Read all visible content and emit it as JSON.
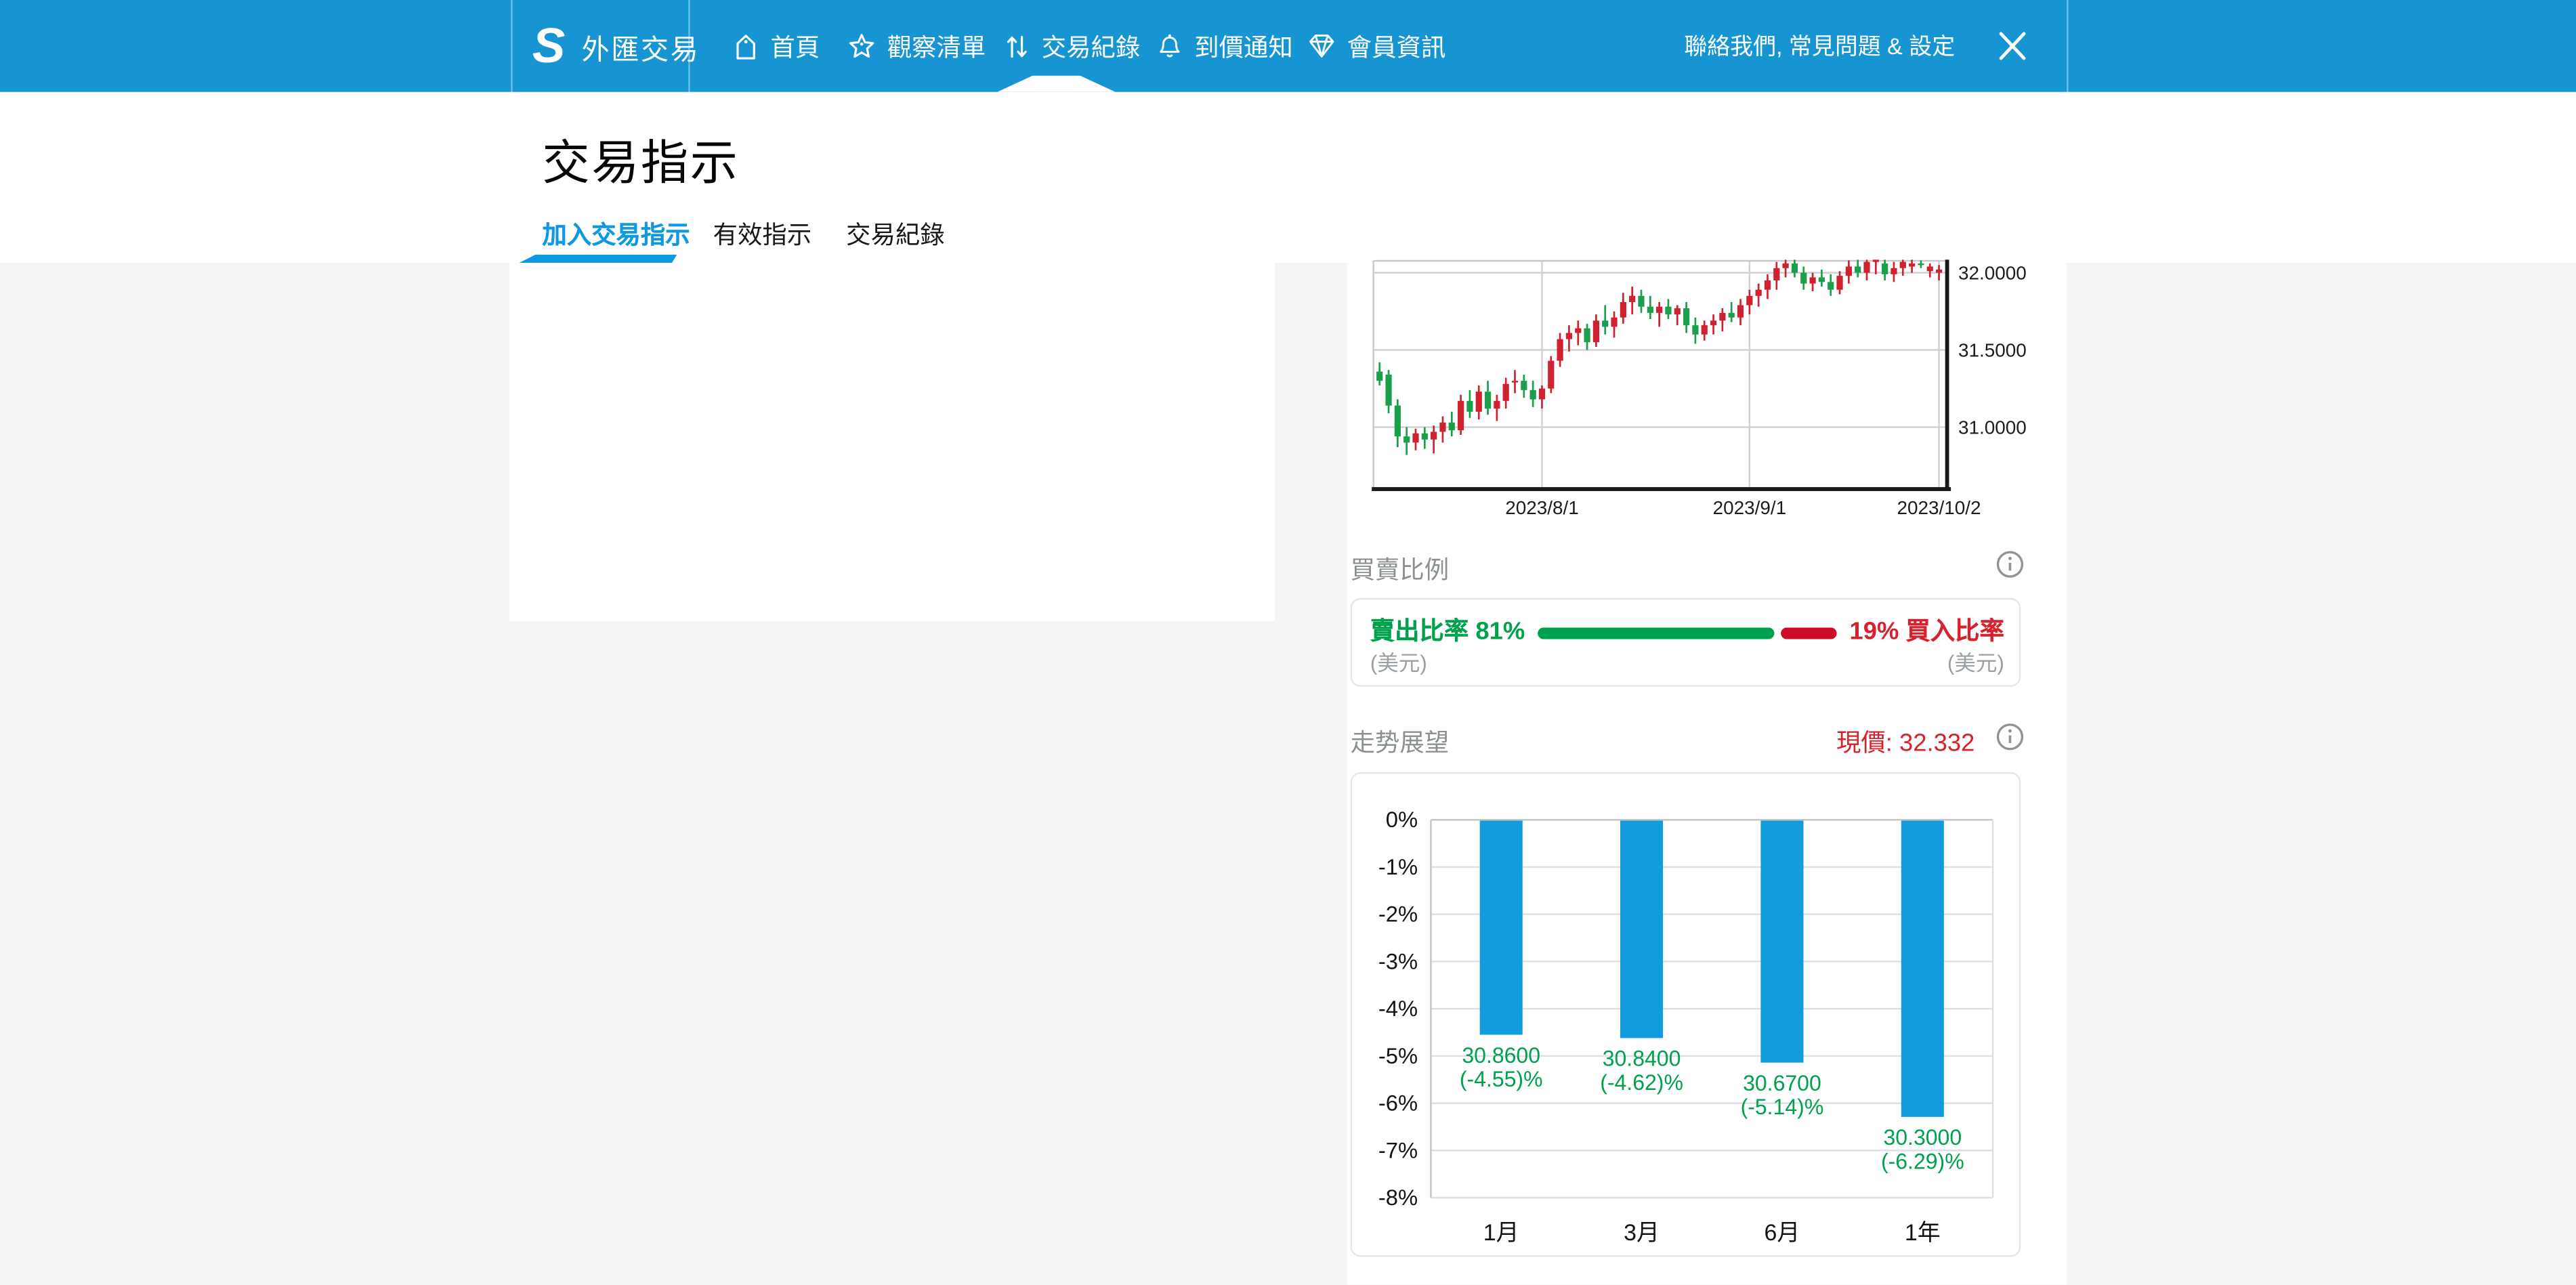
{
  "header": {
    "brand": "外匯交易",
    "nav": [
      {
        "id": "home",
        "label": "首頁",
        "icon": "home-tag-icon"
      },
      {
        "id": "watchlist",
        "label": "觀察清單",
        "icon": "star-icon"
      },
      {
        "id": "trades",
        "label": "交易紀錄",
        "icon": "up-down-arrows-icon",
        "active": true
      },
      {
        "id": "alerts",
        "label": "到價通知",
        "icon": "bell-icon"
      },
      {
        "id": "member",
        "label": "會員資訊",
        "icon": "gem-icon"
      }
    ],
    "right_text": "聯絡我們, 常見問題 & 設定",
    "close_icon": "close-icon",
    "colors": {
      "bar": "#1795d3"
    }
  },
  "page": {
    "title": "交易指示",
    "tabs": [
      {
        "label": "加入交易指示",
        "active": true
      },
      {
        "label": "有效指示",
        "active": false
      },
      {
        "label": "交易紀錄",
        "active": false
      }
    ],
    "accent_color": "#0d98e2"
  },
  "ratio_section": {
    "title": "買賣比例",
    "sell_label": "賣出比率 81%",
    "sell_currency": "(美元)",
    "buy_label": "19% 買入比率",
    "buy_currency": "(美元)",
    "sell_pct": 81,
    "buy_pct": 19,
    "sell_color": "#00a14d",
    "buy_color": "#ce0a29"
  },
  "outlook_section": {
    "title": "走势展望",
    "price_label": "現價: 32.332",
    "current_price": 32.332
  },
  "chart_data": [
    {
      "type": "candlestick",
      "pair": "USD/TWD",
      "up_color": "#cf2130",
      "down_color": "#1aa04b",
      "y_axis_side": "right",
      "yticks": [
        {
          "label": "32.0000",
          "value": 32.0
        },
        {
          "label": "31.5000",
          "value": 31.5
        },
        {
          "label": "31.0000",
          "value": 31.0
        }
      ],
      "xticks": [
        {
          "label": "2023/8/1",
          "index": 18
        },
        {
          "label": "2023/9/1",
          "index": 41
        },
        {
          "label": "2023/10/2",
          "index": 62
        }
      ],
      "visible_value_top": 32.085,
      "visible_value_bottom": 30.61,
      "candles": [
        [
          "7/6",
          31.36,
          31.42,
          31.27,
          31.3
        ],
        [
          "7/7",
          31.34,
          31.37,
          31.09,
          31.14
        ],
        [
          "7/10",
          31.14,
          31.18,
          30.87,
          30.94
        ],
        [
          "7/11",
          30.94,
          31.0,
          30.82,
          30.9
        ],
        [
          "7/12",
          30.9,
          30.99,
          30.85,
          30.96
        ],
        [
          "7/13",
          30.96,
          31.0,
          30.86,
          30.92
        ],
        [
          "7/14",
          30.92,
          31.01,
          30.83,
          30.97
        ],
        [
          "7/17",
          30.97,
          31.07,
          30.9,
          31.03
        ],
        [
          "7/18",
          31.03,
          31.1,
          30.94,
          30.98
        ],
        [
          "7/19",
          30.98,
          31.21,
          30.95,
          31.17
        ],
        [
          "7/20",
          31.17,
          31.24,
          31.06,
          31.1
        ],
        [
          "7/21",
          31.1,
          31.27,
          31.05,
          31.23
        ],
        [
          "7/24",
          31.23,
          31.3,
          31.08,
          31.12
        ],
        [
          "7/25",
          31.12,
          31.21,
          31.04,
          31.17
        ],
        [
          "7/26",
          31.17,
          31.32,
          31.12,
          31.28
        ],
        [
          "7/27",
          31.3,
          31.37,
          31.22,
          31.3
        ],
        [
          "7/28",
          31.3,
          31.34,
          31.19,
          31.24
        ],
        [
          "7/31",
          31.24,
          31.3,
          31.13,
          31.18
        ],
        [
          "8/1",
          31.18,
          31.27,
          31.12,
          31.25
        ],
        [
          "8/2",
          31.25,
          31.46,
          31.22,
          31.43
        ],
        [
          "8/3",
          31.43,
          31.61,
          31.39,
          31.57
        ],
        [
          "8/4",
          31.57,
          31.66,
          31.49,
          31.61
        ],
        [
          "8/7",
          31.61,
          31.69,
          31.53,
          31.64
        ],
        [
          "8/8",
          31.64,
          31.67,
          31.5,
          31.55
        ],
        [
          "8/9",
          31.55,
          31.73,
          31.52,
          31.69
        ],
        [
          "8/10",
          31.69,
          31.79,
          31.6,
          31.65
        ],
        [
          "8/11",
          31.65,
          31.75,
          31.58,
          31.71
        ],
        [
          "8/14",
          31.71,
          31.87,
          31.67,
          31.81
        ],
        [
          "8/15",
          31.81,
          31.91,
          31.73,
          31.85
        ],
        [
          "8/16",
          31.85,
          31.89,
          31.74,
          31.78
        ],
        [
          "8/17",
          31.78,
          31.85,
          31.7,
          31.74
        ],
        [
          "8/18",
          31.74,
          31.81,
          31.65,
          31.78
        ],
        [
          "8/21",
          31.78,
          31.83,
          31.7,
          31.73
        ],
        [
          "8/22",
          31.73,
          31.79,
          31.66,
          31.77
        ],
        [
          "8/23",
          31.77,
          31.81,
          31.61,
          31.66
        ],
        [
          "8/24",
          31.66,
          31.71,
          31.54,
          31.6
        ],
        [
          "8/25",
          31.6,
          31.69,
          31.56,
          31.66
        ],
        [
          "8/28",
          31.66,
          31.73,
          31.6,
          31.69
        ],
        [
          "8/29",
          31.69,
          31.77,
          31.62,
          31.74
        ],
        [
          "8/30",
          31.74,
          31.81,
          31.68,
          31.71
        ],
        [
          "8/31",
          31.71,
          31.83,
          31.66,
          31.79
        ],
        [
          "9/1",
          31.79,
          31.89,
          31.73,
          31.85
        ],
        [
          "9/4",
          31.85,
          31.93,
          31.78,
          31.89
        ],
        [
          "9/5",
          31.89,
          31.99,
          31.83,
          31.95
        ],
        [
          "9/6",
          31.95,
          32.07,
          31.89,
          32.03
        ],
        [
          "9/7",
          32.03,
          32.12,
          31.97,
          32.06
        ],
        [
          "9/8",
          32.06,
          32.1,
          31.97,
          32.0
        ],
        [
          "9/11",
          32.0,
          32.04,
          31.89,
          31.93
        ],
        [
          "9/12",
          31.93,
          32.0,
          31.88,
          31.97
        ],
        [
          "9/13",
          31.97,
          32.02,
          31.91,
          31.94
        ],
        [
          "9/14",
          31.94,
          31.99,
          31.85,
          31.89
        ],
        [
          "9/15",
          31.89,
          32.01,
          31.86,
          31.98
        ],
        [
          "9/18",
          31.98,
          32.08,
          31.93,
          32.04
        ],
        [
          "9/19",
          32.04,
          32.09,
          31.97,
          32.0
        ],
        [
          "9/20",
          32.0,
          32.11,
          31.95,
          32.07
        ],
        [
          "9/21",
          32.07,
          32.14,
          31.99,
          32.1
        ],
        [
          "9/22",
          32.06,
          32.09,
          31.95,
          31.99
        ],
        [
          "9/25",
          31.99,
          32.07,
          31.94,
          32.03
        ],
        [
          "9/26",
          32.03,
          32.11,
          31.98,
          32.07
        ],
        [
          "9/27",
          32.04,
          32.09,
          32.0,
          32.06
        ],
        [
          "9/28",
          32.06,
          32.08,
          32.03,
          32.05
        ],
        [
          "9/29",
          32.01,
          32.06,
          31.97,
          32.04
        ],
        [
          "10/2",
          32.0,
          32.05,
          31.95,
          32.02
        ]
      ]
    },
    {
      "type": "bar",
      "title": "走势展望",
      "bar_color": "#129bdd",
      "label_color": "#00a14d",
      "categories": [
        "1月",
        "3月",
        "6月",
        "1年"
      ],
      "values_pct": [
        -4.55,
        -4.62,
        -5.14,
        -6.29
      ],
      "price_labels": [
        "30.8600",
        "30.8400",
        "30.6700",
        "30.3000"
      ],
      "pct_labels": [
        "(-4.55)%",
        "(-4.62)%",
        "(-5.14)%",
        "(-6.29)%"
      ],
      "yticks": [
        "0%",
        "-1%",
        "-2%",
        "-3%",
        "-4%",
        "-5%",
        "-6%",
        "-7%",
        "-8%"
      ],
      "ylim": [
        0,
        -8
      ],
      "grid": true
    }
  ]
}
